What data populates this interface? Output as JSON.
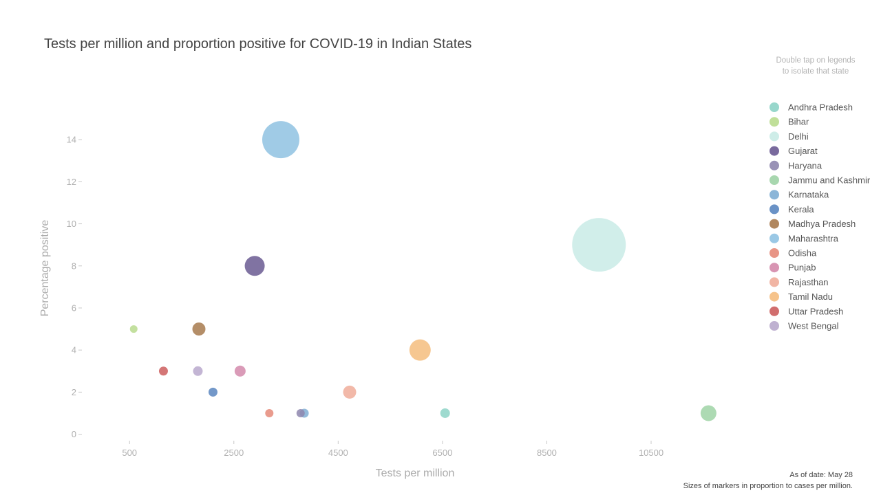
{
  "chart_data": {
    "type": "scatter",
    "title": "Tests per million and proportion positive for COVID-19 in Indian States",
    "hint_lines": [
      "Double tap on legends",
      "to isolate that state"
    ],
    "xlabel": "Tests per million",
    "ylabel": "Percentage positive",
    "xlim": [
      -400,
      12400
    ],
    "ylim": [
      -0.7,
      15.9
    ],
    "xticks": [
      500,
      2500,
      4500,
      6500,
      8500,
      10500
    ],
    "yticks": [
      0,
      2,
      4,
      6,
      8,
      10,
      12,
      14
    ],
    "grid": false,
    "legend_position": "right",
    "footnote": [
      "As of date: May 28",
      "Sizes of markers in proportion to cases per million."
    ],
    "series": [
      {
        "name": "Andhra Pradesh",
        "color": "#8dd3c7",
        "x": 6550,
        "y": 1,
        "size": 14
      },
      {
        "name": "Bihar",
        "color": "#b9db8e",
        "x": 580,
        "y": 5,
        "size": 11
      },
      {
        "name": "Delhi",
        "color": "#c9ebe6",
        "x": 9500,
        "y": 9,
        "size": 78
      },
      {
        "name": "Gujarat",
        "color": "#6a5a92",
        "x": 2900,
        "y": 8,
        "size": 29
      },
      {
        "name": "Haryana",
        "color": "#8e86ae",
        "x": 3780,
        "y": 1,
        "size": 12
      },
      {
        "name": "Jammu and Kashmir",
        "color": "#9fd3a6",
        "x": 11600,
        "y": 1,
        "size": 23
      },
      {
        "name": "Karnataka",
        "color": "#80aed4",
        "x": 3850,
        "y": 1,
        "size": 13
      },
      {
        "name": "Kerala",
        "color": "#5a86c0",
        "x": 2100,
        "y": 2,
        "size": 13
      },
      {
        "name": "Madhya Pradesh",
        "color": "#a77a4e",
        "x": 1830,
        "y": 5,
        "size": 19
      },
      {
        "name": "Maharashtra",
        "color": "#8fc2e2",
        "x": 3400,
        "y": 14,
        "size": 54
      },
      {
        "name": "Odisha",
        "color": "#e58a79",
        "x": 3180,
        "y": 1,
        "size": 12
      },
      {
        "name": "Punjab",
        "color": "#d48aab",
        "x": 2620,
        "y": 3,
        "size": 16
      },
      {
        "name": "Rajasthan",
        "color": "#f0ad9a",
        "x": 4720,
        "y": 2,
        "size": 19
      },
      {
        "name": "Tamil Nadu",
        "color": "#f5bd7e",
        "x": 6070,
        "y": 4,
        "size": 31
      },
      {
        "name": "Uttar Pradesh",
        "color": "#cc5e5e",
        "x": 1150,
        "y": 3,
        "size": 13
      },
      {
        "name": "West Bengal",
        "color": "#b8a8cc",
        "x": 1810,
        "y": 3,
        "size": 14
      }
    ]
  }
}
